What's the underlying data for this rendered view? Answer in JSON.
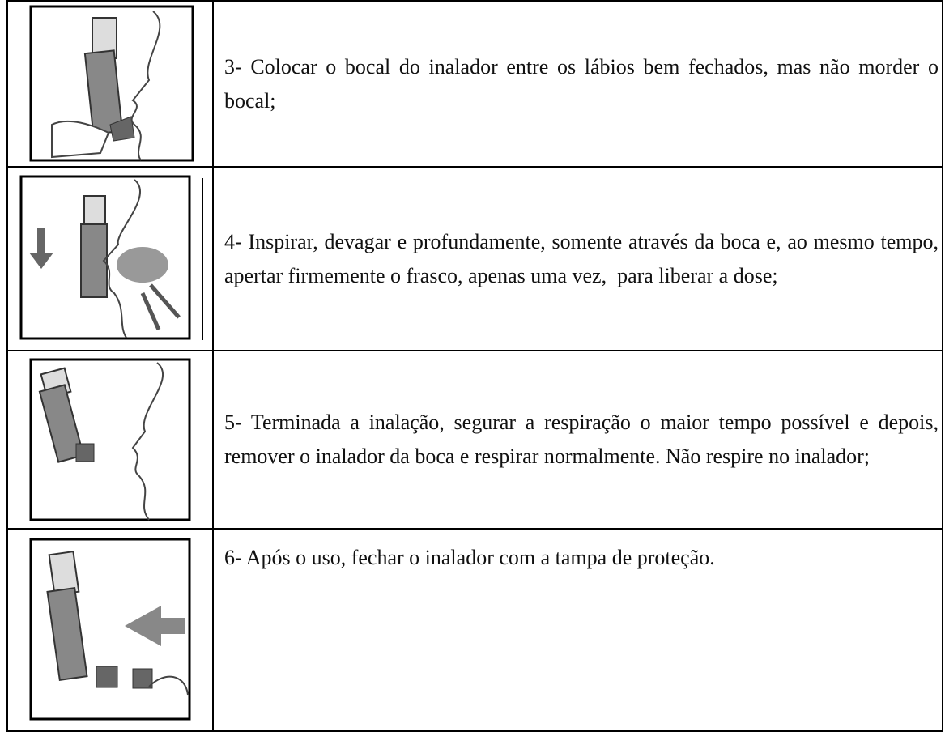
{
  "table": {
    "rows": [
      {
        "text": "3- Colocar o bocal do inalador entre os lábios bem fechados, mas não morder o bocal;"
      },
      {
        "text": "4- Inspirar, devagar e profundamente, somente através da boca e, ao mesmo tempo, apertar firmemente o frasco, apenas uma vez,  para liberar a dose;"
      },
      {
        "text": "5- Terminada a inalação, segurar a respiração o maior tempo possível e depois, remover o inalador da boca e respirar normalmente. Não respire no inalador;"
      },
      {
        "text": "6- Após o uso, fechar o inalador com a tampa de proteção."
      }
    ]
  }
}
